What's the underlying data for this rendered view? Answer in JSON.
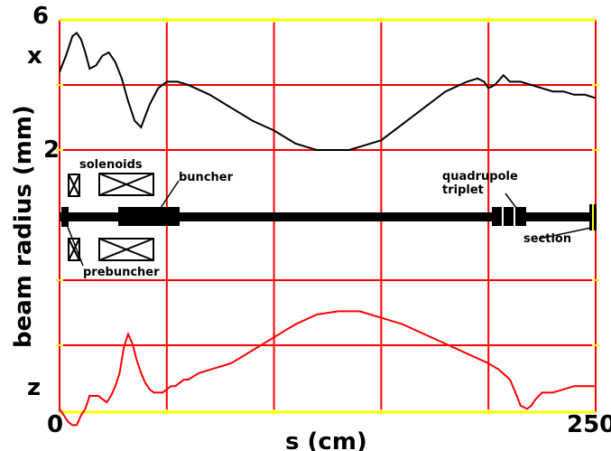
{
  "chart_data": {
    "type": "line",
    "xlabel": "s (cm)",
    "ylabel": "beam radius (mm)",
    "xlim": [
      0,
      250
    ],
    "x_ticks": [
      "0",
      "250"
    ],
    "y_ticks": [
      "6",
      "2"
    ],
    "grid": true,
    "colors": {
      "grid": "#ff0000",
      "border": "#ffff00",
      "x_trace": "#000000",
      "z_trace": "#ff0000",
      "beamline": "#000000"
    },
    "series": [
      {
        "name": "x",
        "x": [
          0,
          3,
          6,
          8,
          10,
          12,
          14,
          17,
          20,
          23,
          26,
          29,
          32,
          35,
          38,
          42,
          46,
          50,
          55,
          60,
          70,
          80,
          90,
          100,
          110,
          115,
          120,
          125,
          130,
          135,
          140,
          145,
          150,
          160,
          170,
          180,
          190,
          195,
          198,
          200,
          203,
          207,
          210,
          215,
          220,
          225,
          230,
          235,
          240,
          245,
          250
        ],
        "y": [
          4.4,
          4.9,
          5.5,
          5.6,
          5.4,
          5.0,
          4.5,
          4.6,
          4.9,
          5.0,
          4.7,
          4.2,
          3.5,
          2.9,
          2.7,
          3.4,
          3.9,
          4.1,
          4.1,
          4.0,
          3.7,
          3.3,
          2.9,
          2.6,
          2.2,
          2.1,
          2.0,
          2.0,
          2.0,
          2.0,
          2.1,
          2.2,
          2.3,
          2.8,
          3.3,
          3.8,
          4.1,
          4.2,
          4.1,
          3.9,
          4.0,
          4.3,
          4.1,
          4.1,
          4.0,
          3.9,
          3.8,
          3.8,
          3.7,
          3.7,
          3.6
        ]
      },
      {
        "name": "z",
        "x": [
          0,
          2,
          4,
          6,
          8,
          10,
          12,
          14,
          16,
          18,
          20,
          22,
          24,
          26,
          28,
          30,
          32,
          34,
          36,
          38,
          40,
          42,
          44,
          46,
          48,
          50,
          52,
          54,
          56,
          58,
          60,
          65,
          70,
          75,
          80,
          90,
          100,
          110,
          120,
          130,
          140,
          150,
          160,
          170,
          180,
          190,
          200,
          205,
          210,
          212,
          215,
          218,
          220,
          222,
          225,
          230,
          235,
          240,
          245,
          250
        ],
        "y": [
          -5.9,
          -6.1,
          -6.3,
          -6.4,
          -6.4,
          -6.1,
          -5.9,
          -5.5,
          -5.5,
          -5.5,
          -5.6,
          -5.7,
          -5.5,
          -5.2,
          -4.8,
          -4.0,
          -3.6,
          -3.9,
          -4.4,
          -4.8,
          -5.1,
          -5.3,
          -5.4,
          -5.4,
          -5.4,
          -5.3,
          -5.2,
          -5.2,
          -5.1,
          -5.0,
          -5.0,
          -4.8,
          -4.7,
          -4.6,
          -4.5,
          -4.1,
          -3.7,
          -3.3,
          -3.0,
          -2.9,
          -2.9,
          -3.1,
          -3.3,
          -3.6,
          -3.9,
          -4.2,
          -4.5,
          -4.7,
          -5.0,
          -5.3,
          -5.8,
          -5.9,
          -5.8,
          -5.6,
          -5.4,
          -5.4,
          -5.3,
          -5.2,
          -5.2,
          -5.2
        ]
      }
    ],
    "annotations": {
      "x_marker": "x",
      "z_marker": "z",
      "solenoids": "solenoids",
      "buncher": "buncher",
      "quadrupole": "quadrupole",
      "triplet": "triplet",
      "prebuncher": "prebuncher",
      "section": "section"
    }
  }
}
